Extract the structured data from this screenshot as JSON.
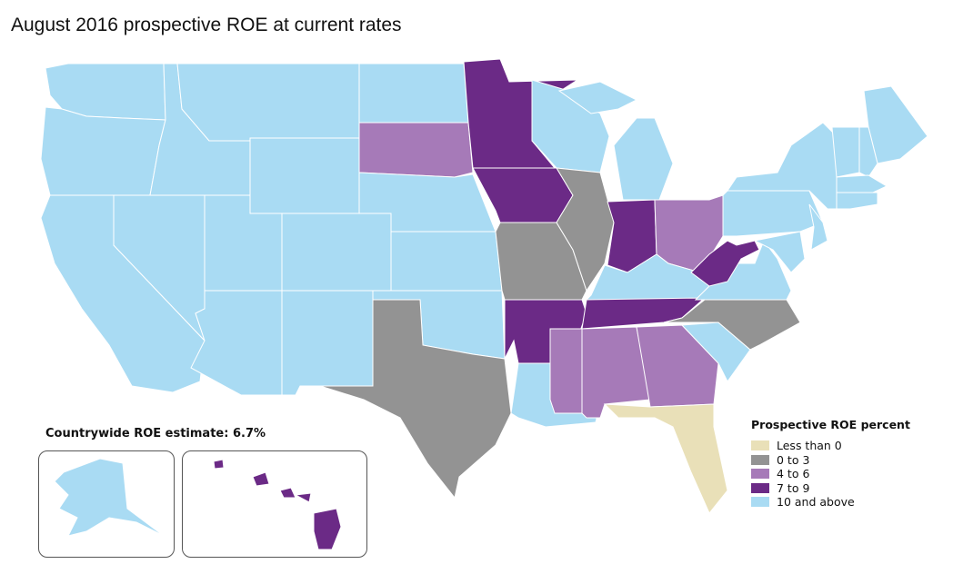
{
  "title": "August 2016 prospective ROE at current rates",
  "countrywide": "Countrywide ROE estimate: 6.7%",
  "legend": {
    "title": "Prospective ROE percent",
    "items": [
      {
        "key": "neg",
        "label": "Less than 0",
        "color": "#e9e0b8"
      },
      {
        "key": "low",
        "label": "0 to 3",
        "color": "#939393"
      },
      {
        "key": "mid",
        "label": "4 to 6",
        "color": "#a67ab8"
      },
      {
        "key": "high",
        "label": "7 to 9",
        "color": "#6b2a86"
      },
      {
        "key": "top",
        "label": "10 and above",
        "color": "#a9dbf3"
      }
    ]
  },
  "states": {
    "WA": "top",
    "OR": "top",
    "CA": "top",
    "NV": "top",
    "ID": "top",
    "MT": "top",
    "WY": "top",
    "UT": "top",
    "CO": "top",
    "AZ": "top",
    "NM": "top",
    "ND": "top",
    "SD": "mid",
    "NE": "top",
    "KS": "top",
    "OK": "top",
    "TX": "low",
    "MN": "high",
    "IA": "high",
    "MO": "low",
    "AR": "high",
    "LA": "top",
    "WI": "top",
    "IL": "low",
    "MI": "top",
    "MIU": "top",
    "IN": "high",
    "OH": "mid",
    "KY": "top",
    "TN": "high",
    "MS": "mid",
    "AL": "mid",
    "GA": "mid",
    "FL": "neg",
    "SC": "top",
    "NC": "low",
    "VA": "top",
    "WV": "high",
    "PA": "top",
    "NY": "top",
    "NJ": "top",
    "MD": "top",
    "ME": "top",
    "NH": "top",
    "VT": "top",
    "MA": "top",
    "CT": "top",
    "AK": "top",
    "HI": "high"
  }
}
